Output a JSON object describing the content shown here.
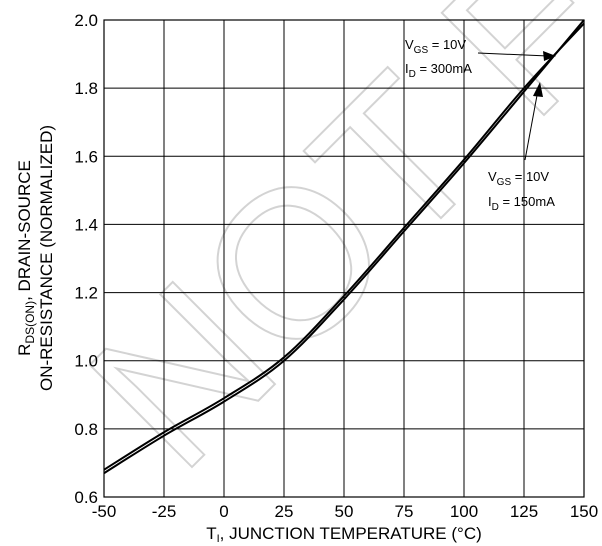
{
  "chart_data": {
    "type": "line",
    "title": "",
    "xlabel": {
      "pre": "T",
      "sub": "I",
      "post": ", JUNCTION TEMPERATURE (°C)"
    },
    "ylabel": {
      "line1_pre": "R",
      "line1_sub": "DS(ON)",
      "line1_post": ", DRAIN-SOURCE",
      "line2": "ON-RESISTANCE (NORMALIZED)"
    },
    "xlim": [
      -50,
      150
    ],
    "ylim": [
      0.6,
      2.0
    ],
    "x_ticks": [
      -50,
      -25,
      0,
      25,
      50,
      75,
      100,
      125,
      150
    ],
    "x_tick_labels": [
      "-50",
      "-25",
      "0",
      "25",
      "50",
      "75",
      "100",
      "125",
      "150"
    ],
    "y_ticks": [
      0.6,
      0.8,
      1.0,
      1.2,
      1.4,
      1.6,
      1.8,
      2.0
    ],
    "y_tick_labels": [
      "0.6",
      "0.8",
      "1.0",
      "1.2",
      "1.4",
      "1.6",
      "1.8",
      "2.0"
    ],
    "grid": true,
    "series": [
      {
        "x": [
          -50,
          -25,
          0,
          25,
          50,
          75,
          100,
          125,
          150
        ],
        "y": [
          0.67,
          0.78,
          0.88,
          1.0,
          1.18,
          1.38,
          1.58,
          1.79,
          2.0
        ]
      },
      {
        "x": [
          -50,
          -25,
          0,
          25,
          50,
          75,
          100,
          125,
          150
        ],
        "y": [
          0.68,
          0.79,
          0.89,
          1.01,
          1.19,
          1.39,
          1.59,
          1.8,
          1.99
        ]
      }
    ],
    "annotations": [
      {
        "vgs_label": "V",
        "vgs_sub": "GS",
        "vgs_val": " = 10V",
        "id_label": "I",
        "id_sub": "D",
        "id_val": " = 300mA",
        "point": [
          144,
          1.93
        ]
      },
      {
        "vgs_label": "V",
        "vgs_sub": "GS",
        "vgs_val": " = 10V",
        "id_label": "I",
        "id_sub": "D",
        "id_val": " = 150mA",
        "point": [
          132,
          1.83
        ]
      }
    ],
    "watermark": "NOT FOR"
  }
}
